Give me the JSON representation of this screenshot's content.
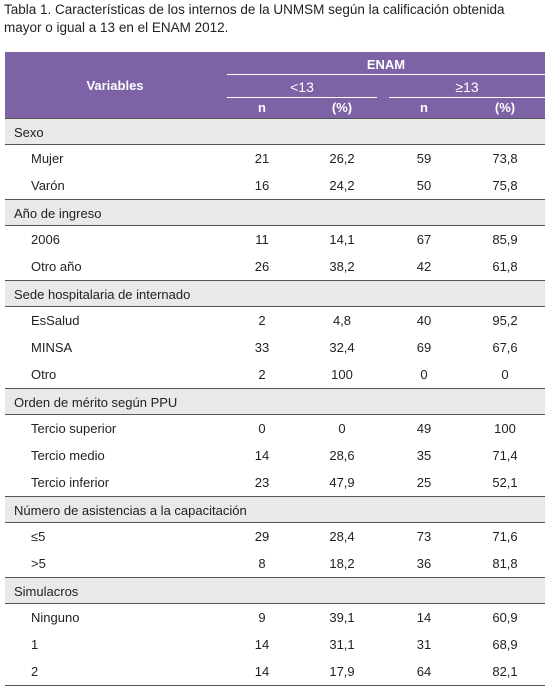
{
  "caption": [
    "Tabla 1. Características de los internos de la UNMSM según la calificación obtenida",
    "mayor o igual a 13 en el ENAM 2012."
  ],
  "table": {
    "header": {
      "variables": "Variables",
      "group": "ENAM",
      "subgroups": [
        "<13",
        "≥13"
      ],
      "columns": [
        "n",
        "(%)",
        "n",
        "(%)"
      ]
    },
    "sections": [
      {
        "label": "Sexo",
        "rows": [
          [
            "Mujer",
            "21",
            "26,2",
            "59",
            "73,8"
          ],
          [
            "Varón",
            "16",
            "24,2",
            "50",
            "75,8"
          ]
        ]
      },
      {
        "label": "Año de ingreso",
        "rows": [
          [
            "2006",
            "11",
            "14,1",
            "67",
            "85,9"
          ],
          [
            "Otro año",
            "26",
            "38,2",
            "42",
            "61,8"
          ]
        ]
      },
      {
        "label": "Sede hospitalaria de internado",
        "rows": [
          [
            "EsSalud",
            "2",
            "4,8",
            "40",
            "95,2"
          ],
          [
            "MINSA",
            "33",
            "32,4",
            "69",
            "67,6"
          ],
          [
            "Otro",
            "2",
            "100",
            "0",
            "0"
          ]
        ]
      },
      {
        "label": "Orden de mérito según PPU",
        "rows": [
          [
            "Tercio superior",
            "0",
            "0",
            "49",
            "100"
          ],
          [
            "Tercio medio",
            "14",
            "28,6",
            "35",
            "71,4"
          ],
          [
            "Tercio inferior",
            "23",
            "47,9",
            "25",
            "52,1"
          ]
        ]
      },
      {
        "label": "Número de asistencias a la capacitación",
        "rows": [
          [
            "≤5",
            "29",
            "28,4",
            "73",
            "71,6"
          ],
          [
            ">5",
            "8",
            "18,2",
            "36",
            "81,8"
          ]
        ]
      },
      {
        "label": "Simulacros",
        "rows": [
          [
            "Ninguno",
            "9",
            "39,1",
            "14",
            "60,9"
          ],
          [
            "1",
            "14",
            "31,1",
            "31",
            "68,9"
          ],
          [
            "2",
            "14",
            "17,9",
            "64",
            "82,1"
          ]
        ]
      }
    ]
  }
}
